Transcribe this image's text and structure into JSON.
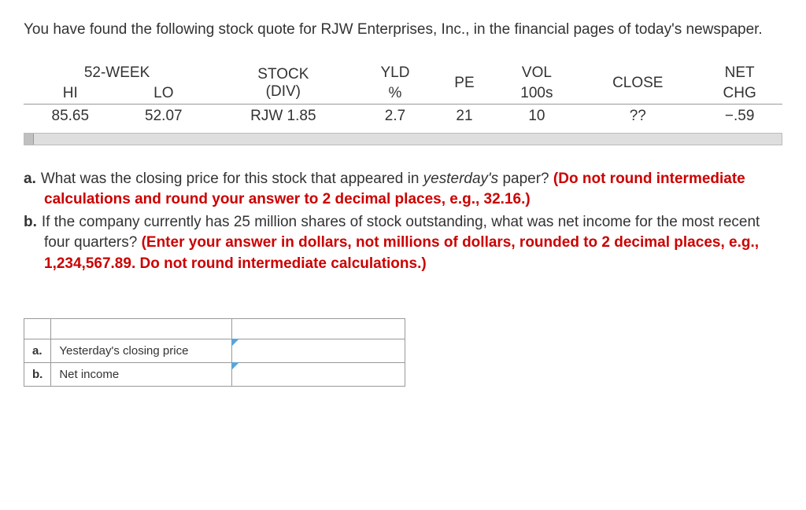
{
  "intro": "You have found the following stock quote for RJW Enterprises, Inc., in the financial pages of today's newspaper.",
  "stockTable": {
    "headers": {
      "week52": "52-WEEK",
      "hi": "HI",
      "lo": "LO",
      "stock": "STOCK",
      "div": "(DIV)",
      "yld": "YLD",
      "pct": "%",
      "pe": "PE",
      "vol": "VOL",
      "h100s": "100s",
      "close": "CLOSE",
      "net": "NET",
      "chg": "CHG"
    },
    "row": {
      "hi": "85.65",
      "lo": "52.07",
      "stock": "RJW 1.85",
      "yld": "2.7",
      "pe": "21",
      "vol": "10",
      "close": "??",
      "chg": "−.59"
    }
  },
  "questions": {
    "a": {
      "letter": "a.",
      "textPre": "What was the closing price for this stock that appeared in ",
      "italic": "yesterday's",
      "textPost": " paper? ",
      "instr": "(Do not round intermediate calculations and round your answer to 2 decimal places, e.g., 32.16.)"
    },
    "b": {
      "letter": "b.",
      "text": "If the company currently has 25 million shares of stock outstanding, what was net income for the most recent four quarters? ",
      "instr": "(Enter your answer in dollars, not millions of dollars, rounded to 2 decimal places, e.g., 1,234,567.89. Do not round intermediate calculations.)"
    }
  },
  "answerTable": {
    "rowA": {
      "letter": "a.",
      "label": "Yesterday's closing price",
      "value": ""
    },
    "rowB": {
      "letter": "b.",
      "label": "Net income",
      "value": ""
    }
  },
  "colors": {
    "red": "#cc0000",
    "text": "#333333",
    "border": "#999999",
    "marker": "#5aa5d8"
  }
}
